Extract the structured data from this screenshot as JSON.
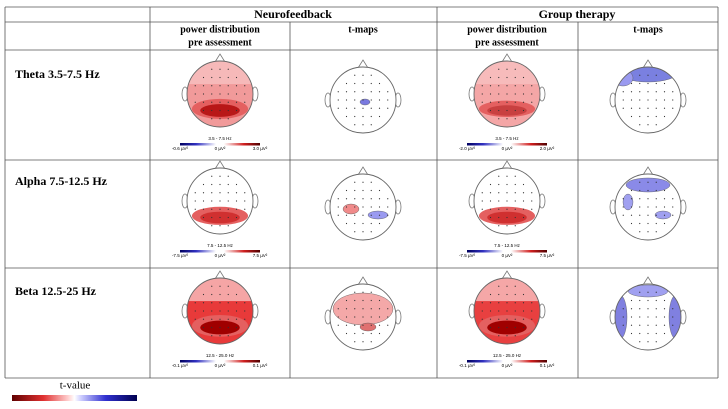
{
  "table": {
    "groups": [
      "Neurofeedback",
      "Group therapy"
    ],
    "subheaders": [
      [
        "power distribution",
        "pre assessment"
      ],
      "t-maps",
      [
        "power distribution",
        "pre assessment"
      ],
      "t-maps"
    ],
    "rows": [
      {
        "label": "Theta 3.5-7.5 Hz",
        "scales": [
          {
            "band": "3.5 - 7.5 Hz",
            "ticks": [
              "-0.6 µV²",
              "0 µV²",
              "3.0 µV²"
            ]
          },
          {
            "band": "3.5 - 7.5 Hz",
            "ticks": [
              "-2.0 µV²",
              "0 µV²",
              "2.0 µV²"
            ]
          }
        ]
      },
      {
        "label": "Alpha 7.5-12.5 Hz",
        "scales": [
          {
            "band": "7.5 - 12.5 Hz",
            "ticks": [
              "-7.5 µV²",
              "0 µV²",
              "7.5 µV²"
            ]
          },
          {
            "band": "7.5 - 12.5 Hz",
            "ticks": [
              "-7.5 µV²",
              "0 µV²",
              "7.5 µV²"
            ]
          }
        ]
      },
      {
        "label": "Beta 12.5-25 Hz",
        "scales": [
          {
            "band": "12.5 - 25.0 Hz",
            "ticks": [
              "-0.1 µV²",
              "0 µV²",
              "0.1 µV²"
            ]
          },
          {
            "band": "12.5 - 25.0 Hz",
            "ticks": [
              "-0.1 µV²",
              "0 µV²",
              "0.1 µV²"
            ]
          }
        ]
      }
    ]
  },
  "legend": {
    "title": "t-value"
  }
}
